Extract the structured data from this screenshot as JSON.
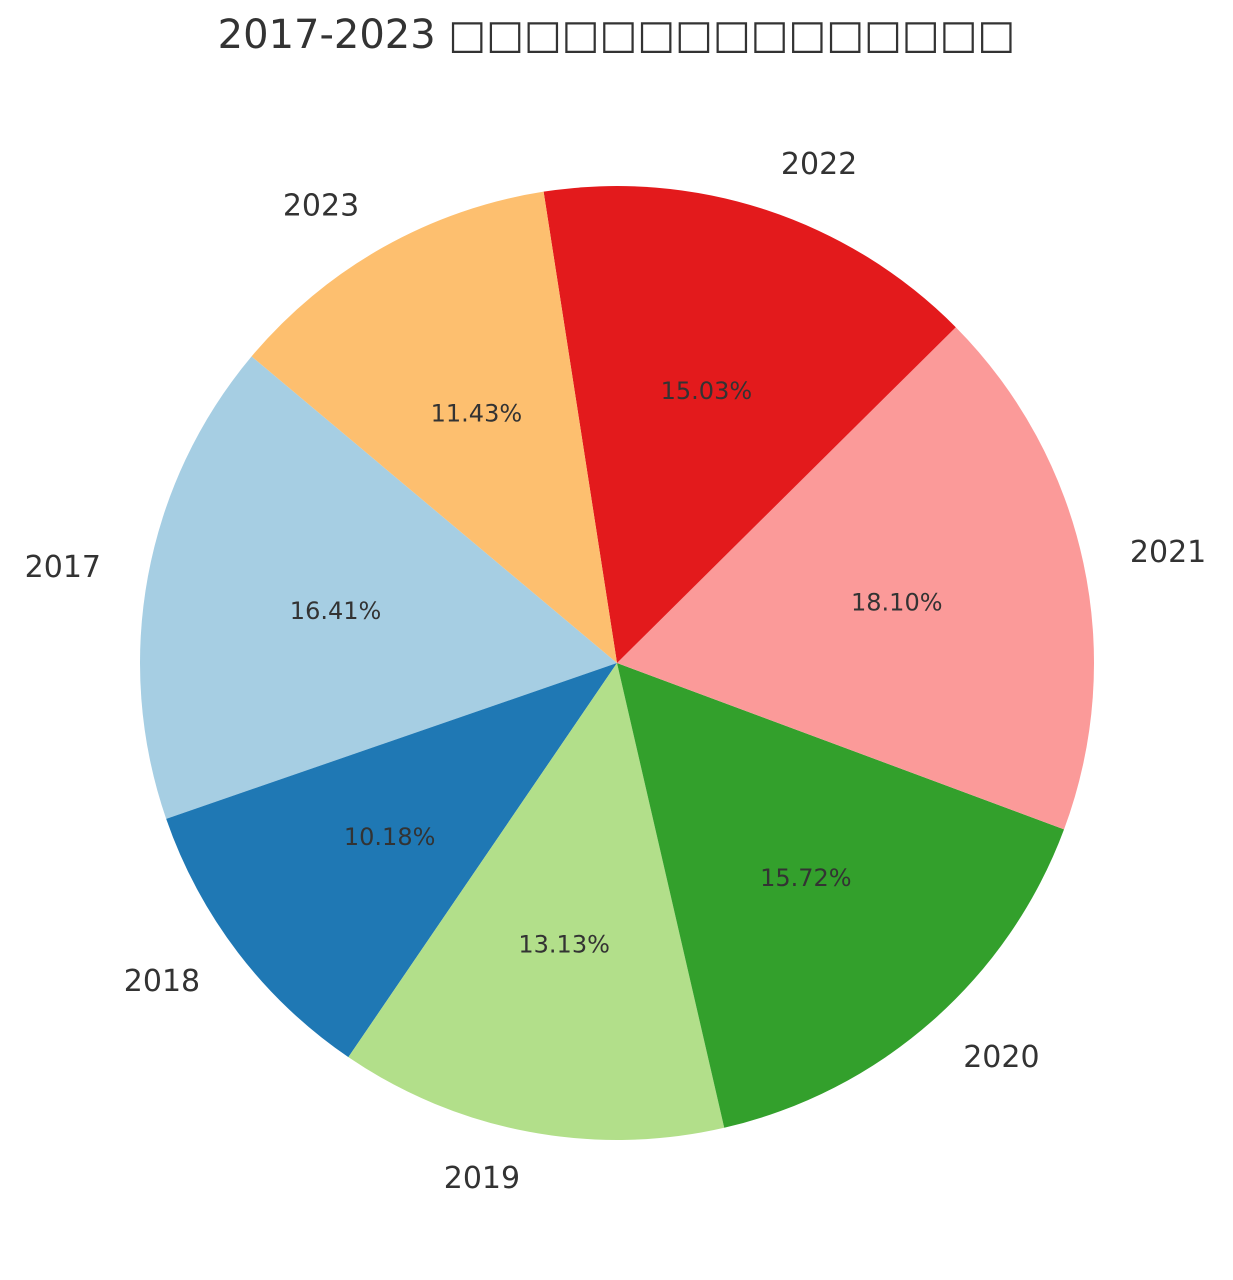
{
  "chart_data": {
    "type": "pie",
    "title": "2017-2023 □□□□□□□□□□□□□□□",
    "categories": [
      "2017",
      "2018",
      "2019",
      "2020",
      "2021",
      "2022",
      "2023"
    ],
    "values": [
      16.41,
      10.18,
      13.13,
      15.72,
      18.1,
      15.03,
      11.43
    ],
    "value_labels": [
      "16.41%",
      "10.18%",
      "13.13%",
      "15.72%",
      "18.10%",
      "15.03%",
      "11.43%"
    ],
    "colors": [
      "#a6cee3",
      "#1f78b4",
      "#b2df8a",
      "#33a02c",
      "#fb9a99",
      "#e31a1c",
      "#fdbf6f"
    ],
    "start_angle_deg": 140,
    "direction": "counterclockwise",
    "legend": "none"
  }
}
